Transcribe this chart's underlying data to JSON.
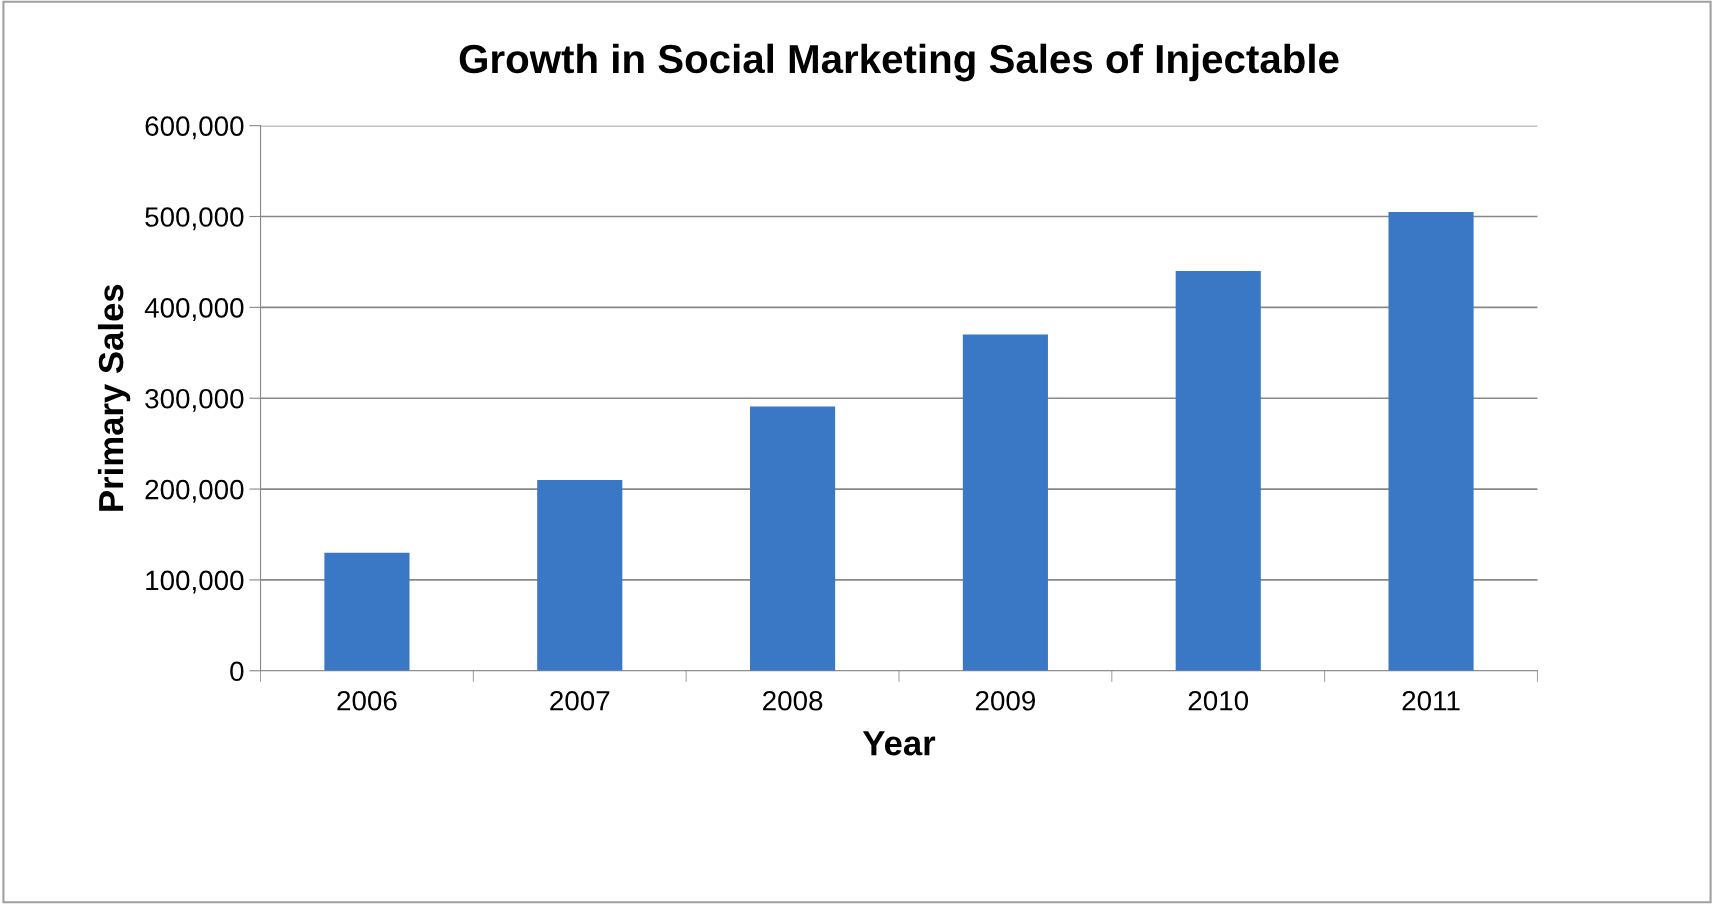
{
  "chart_data": {
    "type": "bar",
    "title": "Growth in Social Marketing Sales of Injectable",
    "xlabel": "Year",
    "ylabel": "Primary Sales",
    "categories": [
      "2006",
      "2007",
      "2008",
      "2009",
      "2010",
      "2011"
    ],
    "values": [
      130000,
      210000,
      291000,
      370000,
      440000,
      505000
    ],
    "color": "#3a78c6",
    "ylim": [
      0,
      600000
    ],
    "yticks": [
      {
        "value": 0,
        "label": "0"
      },
      {
        "value": 100000,
        "label": "100,000"
      },
      {
        "value": 200000,
        "label": "200,000"
      },
      {
        "value": 300000,
        "label": "300,000"
      },
      {
        "value": 400000,
        "label": "400,000"
      },
      {
        "value": 500000,
        "label": "500,000"
      },
      {
        "value": 600000,
        "label": "600,000"
      }
    ],
    "grid": "y"
  }
}
